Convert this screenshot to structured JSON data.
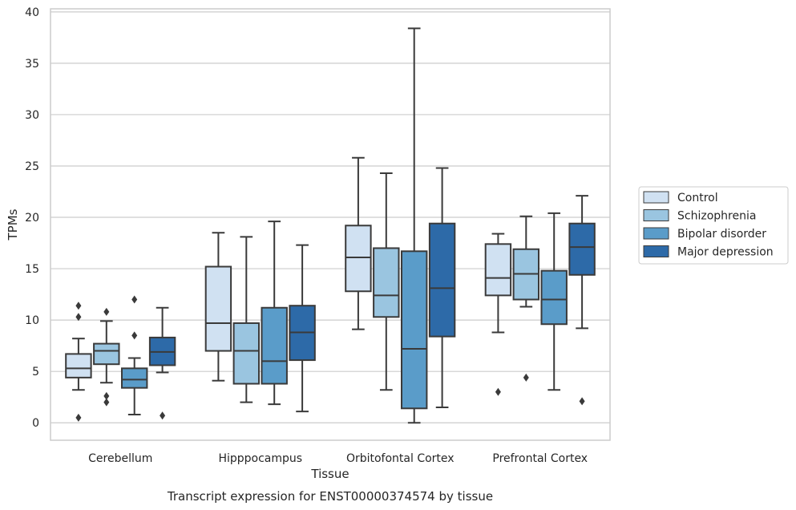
{
  "caption": "Transcript expression for ENST00000374574 by tissue",
  "chart_data": {
    "type": "box",
    "xlabel": "Tissue",
    "ylabel": "TPMs",
    "ylim": [
      -1.7,
      40.3
    ],
    "yticks": [
      0,
      5,
      10,
      15,
      20,
      25,
      30,
      35,
      40
    ],
    "grid": true,
    "legend_position": "right",
    "categories": [
      "Cerebellum",
      "Hipppocampus",
      "Orbitofontal Cortex",
      "Prefrontal Cortex"
    ],
    "series": [
      {
        "name": "Control",
        "color": "#d0e1f2",
        "boxes": [
          {
            "whislo": 3.2,
            "q1": 4.4,
            "med": 5.3,
            "q3": 6.7,
            "whishi": 8.2,
            "fliers": [
              11.4,
              10.3,
              0.5
            ]
          },
          {
            "whislo": 4.1,
            "q1": 7.0,
            "med": 9.7,
            "q3": 15.2,
            "whishi": 18.5,
            "fliers": []
          },
          {
            "whislo": 9.1,
            "q1": 12.8,
            "med": 16.1,
            "q3": 19.2,
            "whishi": 25.8,
            "fliers": []
          },
          {
            "whislo": 8.8,
            "q1": 12.4,
            "med": 14.1,
            "q3": 17.4,
            "whishi": 18.4,
            "fliers": [
              3.0
            ]
          }
        ]
      },
      {
        "name": "Schizophrenia",
        "color": "#9ac5e0",
        "boxes": [
          {
            "whislo": 3.9,
            "q1": 5.7,
            "med": 7.0,
            "q3": 7.7,
            "whishi": 9.9,
            "fliers": [
              10.8,
              2.6,
              2.0
            ]
          },
          {
            "whislo": 2.0,
            "q1": 3.8,
            "med": 7.0,
            "q3": 9.7,
            "whishi": 18.1,
            "fliers": []
          },
          {
            "whislo": 3.2,
            "q1": 10.3,
            "med": 12.4,
            "q3": 17.0,
            "whishi": 24.3,
            "fliers": []
          },
          {
            "whislo": 11.3,
            "q1": 12.0,
            "med": 14.5,
            "q3": 16.9,
            "whishi": 20.1,
            "fliers": [
              4.4
            ]
          }
        ]
      },
      {
        "name": "Bipolar disorder",
        "color": "#5a9cc9",
        "boxes": [
          {
            "whislo": 0.8,
            "q1": 3.4,
            "med": 4.2,
            "q3": 5.3,
            "whishi": 6.3,
            "fliers": [
              12.0,
              8.5
            ]
          },
          {
            "whislo": 1.8,
            "q1": 3.8,
            "med": 6.0,
            "q3": 11.2,
            "whishi": 19.6,
            "fliers": []
          },
          {
            "whislo": 0.0,
            "q1": 1.4,
            "med": 7.2,
            "q3": 16.7,
            "whishi": 38.4,
            "fliers": []
          },
          {
            "whislo": 3.2,
            "q1": 9.6,
            "med": 12.0,
            "q3": 14.8,
            "whishi": 20.4,
            "fliers": []
          }
        ]
      },
      {
        "name": "Major depression",
        "color": "#2d6aa8",
        "boxes": [
          {
            "whislo": 4.9,
            "q1": 5.6,
            "med": 6.9,
            "q3": 8.3,
            "whishi": 11.2,
            "fliers": [
              0.7
            ]
          },
          {
            "whislo": 1.1,
            "q1": 6.1,
            "med": 8.8,
            "q3": 11.4,
            "whishi": 17.3,
            "fliers": []
          },
          {
            "whislo": 1.5,
            "q1": 8.4,
            "med": 13.1,
            "q3": 19.4,
            "whishi": 24.8,
            "fliers": []
          },
          {
            "whislo": 9.2,
            "q1": 14.4,
            "med": 17.1,
            "q3": 19.4,
            "whishi": 22.1,
            "fliers": [
              2.1
            ]
          }
        ]
      }
    ]
  }
}
